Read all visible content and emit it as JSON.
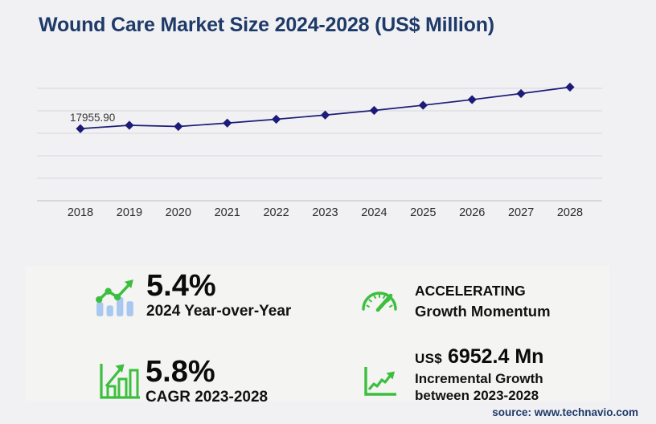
{
  "page": {
    "title": "Wound Care Market Size 2024-2028 (US$ Million)",
    "source": "source: www.technavio.com",
    "colors": {
      "title_navy": "#1e3a68",
      "line_navy": "#1c1c78",
      "green": "#3cbf3f",
      "bar_blue": "#a8c8f0",
      "background": "#f1f1f4",
      "panel": "#f4f4f2",
      "gridline": "#d8d8dc",
      "axis": "#bfbfc4"
    }
  },
  "chart_data": {
    "type": "line",
    "title": "Wound Care Market Size 2024-2028 (US$ Million)",
    "categories": [
      "2018",
      "2019",
      "2020",
      "2021",
      "2022",
      "2023",
      "2024",
      "2025",
      "2026",
      "2027",
      "2028"
    ],
    "values": [
      17955.9,
      18800,
      18500,
      19350,
      20300,
      21349.9,
      22502.9,
      23785,
      25190,
      26700,
      28302.3
    ],
    "first_point_label": "17955.90",
    "xlabel": "",
    "ylabel": "",
    "ylim": [
      0,
      28000
    ],
    "gridline_count": 6,
    "grid": "horizontal",
    "legend": false,
    "marker": "diamond",
    "line_color": "#1c1c78",
    "label_color": "#383838",
    "tick_color": "#2c2c2c"
  },
  "stats": [
    {
      "icon": "yoy-bar-chart-icon",
      "value": "5.4%",
      "label": "2024 Year-over-Year"
    },
    {
      "icon": "cagr-bar-chart-icon",
      "value": "5.8%",
      "label": "CAGR 2023-2028"
    },
    {
      "icon": "speedometer-icon",
      "value": "ACCELERATING",
      "label": "Growth Momentum"
    },
    {
      "icon": "incremental-growth-icon",
      "currency": "US$",
      "value": "6952.4 Mn",
      "label_line1": "Incremental Growth",
      "label_line2": "between 2023-2028"
    }
  ]
}
